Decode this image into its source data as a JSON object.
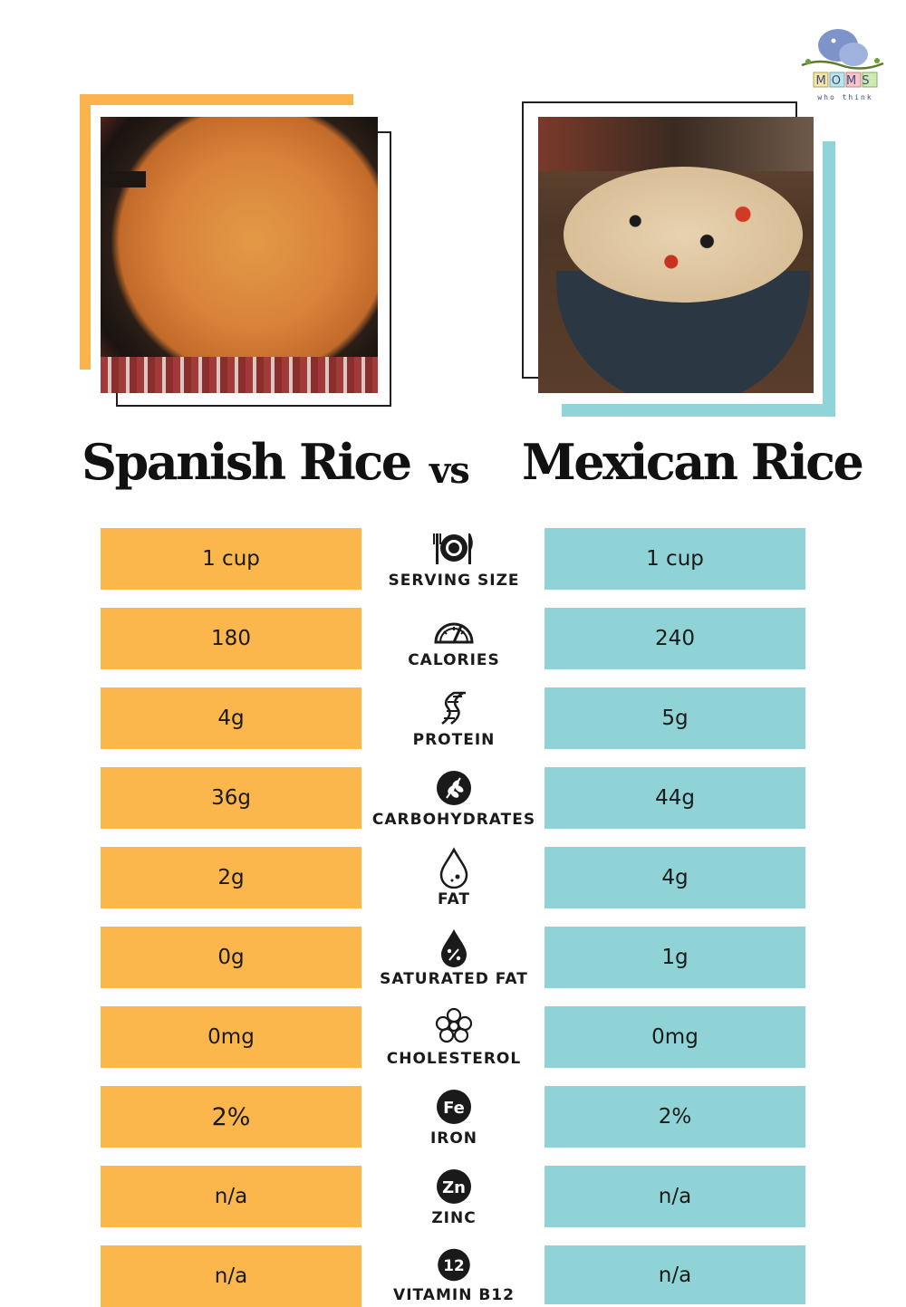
{
  "brand": {
    "logo_letters": "MOMS",
    "logo_tagline": "who think",
    "logo_alt": "Moms Who Think"
  },
  "comparison": {
    "left_title": "Spanish Rice",
    "vs_label": "vs",
    "right_title": "Mexican Rice",
    "left_image": "spanish-rice-photo",
    "right_image": "mexican-rice-photo",
    "colors": {
      "left_accent": "#fbb64c",
      "right_accent": "#8fd3d6",
      "text": "#1a1a1a"
    }
  },
  "rows": [
    {
      "label": "SERVING SIZE",
      "icon": "plate-utensils-icon",
      "left": "1 cup",
      "right": "1 cup"
    },
    {
      "label": "CALORIES",
      "icon": "gauge-icon",
      "left": "180",
      "right": "240"
    },
    {
      "label": "PROTEIN",
      "icon": "dna-icon",
      "left": "4g",
      "right": "5g"
    },
    {
      "label": "CARBOHYDRATES",
      "icon": "wheat-icon",
      "left": "36g",
      "right": "44g"
    },
    {
      "label": "FAT",
      "icon": "drop-icon",
      "left": "2g",
      "right": "4g"
    },
    {
      "label": "SATURATED FAT",
      "icon": "drop-percent-icon",
      "left": "0g",
      "right": "1g"
    },
    {
      "label": "CHOLESTEROL",
      "icon": "molecule-icon",
      "left": "0mg",
      "right": "0mg"
    },
    {
      "label": "IRON",
      "icon": "fe-badge-icon",
      "badge": "Fe",
      "left": "2%",
      "right": "2%"
    },
    {
      "label": "ZINC",
      "icon": "zn-badge-icon",
      "badge": "Zn",
      "left": "n/a",
      "right": "n/a"
    },
    {
      "label": "VITAMIN B12",
      "icon": "b12-badge-icon",
      "badge": "12",
      "left": "n/a",
      "right": "n/a"
    }
  ]
}
